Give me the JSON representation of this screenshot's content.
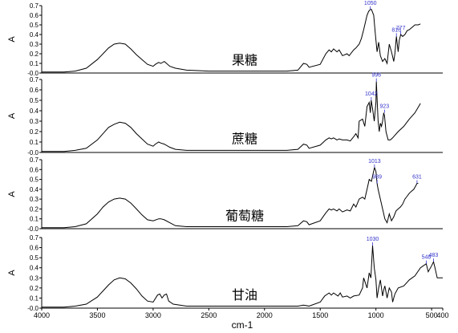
{
  "chart_data": {
    "type": "line",
    "xlabel": "cm-1",
    "x_ticks": [
      4000,
      3500,
      3000,
      2500,
      2000,
      1500,
      1000,
      500,
      400
    ],
    "xlim": [
      4000,
      400
    ],
    "x_reversed": true,
    "y_ticks_labels": [
      "-0.0",
      "0.1",
      "0.2",
      "0.3",
      "0.4",
      "0.5",
      "0.6",
      "0.7"
    ],
    "panels": [
      {
        "ylabel": "A",
        "ylim": [
          0,
          0.7
        ],
        "y_ticks": [
          0,
          0.1,
          0.2,
          0.3,
          0.4,
          0.5,
          0.6,
          0.7
        ],
        "series": [
          {
            "name": "果糖",
            "x": [
              4000,
              3800,
              3700,
              3600,
              3500,
              3450,
              3400,
              3350,
              3300,
              3250,
              3200,
              3150,
              3100,
              3050,
              3000,
              2980,
              2950,
              2930,
              2900,
              2880,
              2850,
              2800,
              2700,
              2500,
              2200,
              2000,
              1800,
              1700,
              1650,
              1620,
              1600,
              1500,
              1450,
              1420,
              1400,
              1380,
              1350,
              1330,
              1300,
              1260,
              1240,
              1200,
              1180,
              1150,
              1130,
              1110,
              1090,
              1080,
              1065,
              1050,
              1040,
              1020,
              1005,
              990,
              975,
              960,
              940,
              920,
              900,
              880,
              860,
              840,
              830,
              816,
              800,
              790,
              777,
              760,
              740,
              720,
              700,
              680,
              650,
              620,
              600
            ],
            "y": [
              0.01,
              0.01,
              0.02,
              0.05,
              0.14,
              0.2,
              0.26,
              0.3,
              0.31,
              0.3,
              0.25,
              0.19,
              0.14,
              0.09,
              0.07,
              0.09,
              0.11,
              0.1,
              0.12,
              0.1,
              0.07,
              0.05,
              0.03,
              0.02,
              0.02,
              0.02,
              0.02,
              0.03,
              0.1,
              0.09,
              0.06,
              0.09,
              0.2,
              0.24,
              0.22,
              0.25,
              0.22,
              0.24,
              0.18,
              0.2,
              0.18,
              0.24,
              0.26,
              0.3,
              0.36,
              0.45,
              0.55,
              0.6,
              0.64,
              0.66,
              0.66,
              0.6,
              0.4,
              0.22,
              0.32,
              0.18,
              0.12,
              0.15,
              0.1,
              0.3,
              0.22,
              0.12,
              0.2,
              0.38,
              0.22,
              0.34,
              0.4,
              0.38,
              0.4,
              0.44,
              0.45,
              0.47,
              0.5,
              0.5,
              0.51
            ]
          }
        ],
        "annotations": [
          {
            "label": "1050",
            "x": 1050,
            "y": 0.66
          },
          {
            "label": "816",
            "x": 816,
            "y": 0.38
          },
          {
            "label": "777",
            "x": 777,
            "y": 0.4
          }
        ]
      },
      {
        "ylabel": "A",
        "ylim": [
          0,
          0.7
        ],
        "y_ticks": [
          0,
          0.1,
          0.2,
          0.3,
          0.4,
          0.5,
          0.6,
          0.7
        ],
        "series": [
          {
            "name": "蔗糖",
            "x": [
              4000,
              3800,
              3700,
              3600,
              3500,
              3450,
              3400,
              3350,
              3300,
              3250,
              3200,
              3150,
              3100,
              3050,
              3000,
              2980,
              2950,
              2930,
              2900,
              2850,
              2800,
              2700,
              2500,
              2200,
              2000,
              1800,
              1700,
              1650,
              1620,
              1600,
              1500,
              1450,
              1420,
              1400,
              1380,
              1350,
              1330,
              1300,
              1260,
              1230,
              1200,
              1180,
              1160,
              1150,
              1120,
              1100,
              1080,
              1060,
              1050,
              1042,
              1030,
              1015,
              1000,
              996,
              990,
              980,
              970,
              960,
              950,
              940,
              930,
              923,
              910,
              890,
              870,
              850,
              800,
              750,
              700,
              650,
              600
            ],
            "y": [
              0.01,
              0.01,
              0.02,
              0.04,
              0.12,
              0.18,
              0.24,
              0.27,
              0.29,
              0.28,
              0.24,
              0.18,
              0.13,
              0.08,
              0.06,
              0.08,
              0.1,
              0.09,
              0.08,
              0.05,
              0.03,
              0.02,
              0.02,
              0.02,
              0.02,
              0.02,
              0.03,
              0.08,
              0.07,
              0.04,
              0.07,
              0.12,
              0.14,
              0.13,
              0.14,
              0.12,
              0.13,
              0.12,
              0.12,
              0.11,
              0.15,
              0.18,
              0.14,
              0.3,
              0.32,
              0.25,
              0.44,
              0.48,
              0.38,
              0.5,
              0.42,
              0.3,
              0.48,
              0.68,
              0.52,
              0.3,
              0.2,
              0.28,
              0.25,
              0.3,
              0.38,
              0.35,
              0.2,
              0.12,
              0.12,
              0.14,
              0.2,
              0.25,
              0.32,
              0.38,
              0.47
            ]
          }
        ],
        "annotations": [
          {
            "label": "996",
            "x": 996,
            "y": 0.68
          },
          {
            "label": "1042",
            "x": 1042,
            "y": 0.5
          },
          {
            "label": "923",
            "x": 923,
            "y": 0.38
          }
        ]
      },
      {
        "ylabel": "A",
        "ylim": [
          0,
          0.7
        ],
        "y_ticks": [
          0,
          0.1,
          0.2,
          0.3,
          0.4,
          0.5,
          0.6,
          0.7
        ],
        "series": [
          {
            "name": "葡萄糖",
            "x": [
              4000,
              3800,
              3700,
              3600,
              3500,
              3450,
              3400,
              3350,
              3300,
              3250,
              3200,
              3150,
              3100,
              3050,
              3000,
              2950,
              2930,
              2900,
              2850,
              2800,
              2700,
              2500,
              2200,
              2000,
              1800,
              1700,
              1650,
              1620,
              1600,
              1500,
              1450,
              1420,
              1400,
              1380,
              1350,
              1330,
              1300,
              1260,
              1230,
              1200,
              1180,
              1150,
              1120,
              1100,
              1080,
              1060,
              1040,
              1025,
              1013,
              1000,
              990,
              980,
              960,
              940,
              920,
              900,
              880,
              860,
              840,
              820,
              800,
              780,
              760,
              740,
              720,
              700,
              680,
              660,
              640,
              631,
              620
            ],
            "y": [
              0.01,
              0.01,
              0.02,
              0.05,
              0.15,
              0.22,
              0.27,
              0.3,
              0.31,
              0.3,
              0.26,
              0.2,
              0.14,
              0.09,
              0.08,
              0.1,
              0.1,
              0.09,
              0.06,
              0.03,
              0.02,
              0.02,
              0.02,
              0.02,
              0.02,
              0.03,
              0.08,
              0.07,
              0.04,
              0.08,
              0.16,
              0.2,
              0.19,
              0.2,
              0.18,
              0.2,
              0.17,
              0.19,
              0.18,
              0.25,
              0.22,
              0.3,
              0.32,
              0.3,
              0.4,
              0.5,
              0.48,
              0.56,
              0.62,
              0.58,
              0.46,
              0.4,
              0.3,
              0.2,
              0.1,
              0.06,
              0.15,
              0.08,
              0.12,
              0.18,
              0.2,
              0.22,
              0.25,
              0.3,
              0.33,
              0.36,
              0.38,
              0.4,
              0.44,
              0.46,
              0.46
            ]
          }
        ],
        "annotations": [
          {
            "label": "1013",
            "x": 1013,
            "y": 0.62
          },
          {
            "label": "989",
            "x": 989,
            "y": 0.46
          },
          {
            "label": "631",
            "x": 631,
            "y": 0.46
          }
        ]
      },
      {
        "ylabel": "A",
        "ylim": [
          0,
          0.7
        ],
        "y_ticks": [
          0,
          0.1,
          0.2,
          0.3,
          0.4,
          0.5,
          0.6,
          0.7
        ],
        "series": [
          {
            "name": "甘油",
            "x": [
              4000,
              3800,
              3700,
              3600,
              3500,
              3450,
              3400,
              3350,
              3300,
              3250,
              3200,
              3150,
              3100,
              3050,
              3000,
              2960,
              2940,
              2920,
              2900,
              2880,
              2860,
              2820,
              2700,
              2500,
              2200,
              2000,
              1800,
              1700,
              1650,
              1600,
              1500,
              1460,
              1420,
              1400,
              1380,
              1340,
              1320,
              1300,
              1260,
              1230,
              1200,
              1150,
              1120,
              1110,
              1080,
              1060,
              1045,
              1030,
              1015,
              1000,
              990,
              975,
              960,
              940,
              930,
              920,
              900,
              880,
              860,
              850,
              830,
              800,
              750,
              700,
              650,
              600,
              548,
              530,
              500,
              483,
              470,
              450,
              420,
              400
            ],
            "y": [
              0.01,
              0.01,
              0.02,
              0.04,
              0.11,
              0.17,
              0.23,
              0.28,
              0.3,
              0.29,
              0.25,
              0.19,
              0.12,
              0.07,
              0.06,
              0.13,
              0.14,
              0.1,
              0.13,
              0.14,
              0.07,
              0.04,
              0.02,
              0.02,
              0.02,
              0.02,
              0.02,
              0.02,
              0.03,
              0.02,
              0.06,
              0.12,
              0.15,
              0.13,
              0.15,
              0.12,
              0.15,
              0.11,
              0.12,
              0.1,
              0.12,
              0.13,
              0.2,
              0.3,
              0.2,
              0.35,
              0.3,
              0.62,
              0.4,
              0.28,
              0.1,
              0.2,
              0.28,
              0.12,
              0.18,
              0.22,
              0.1,
              0.2,
              0.16,
              0.06,
              0.14,
              0.2,
              0.22,
              0.28,
              0.32,
              0.4,
              0.44,
              0.36,
              0.42,
              0.46,
              0.4,
              0.3,
              0.3,
              0.3
            ]
          }
        ],
        "annotations": [
          {
            "label": "1030",
            "x": 1030,
            "y": 0.62
          },
          {
            "label": "548",
            "x": 548,
            "y": 0.44
          },
          {
            "label": "483",
            "x": 483,
            "y": 0.46
          }
        ]
      }
    ]
  }
}
